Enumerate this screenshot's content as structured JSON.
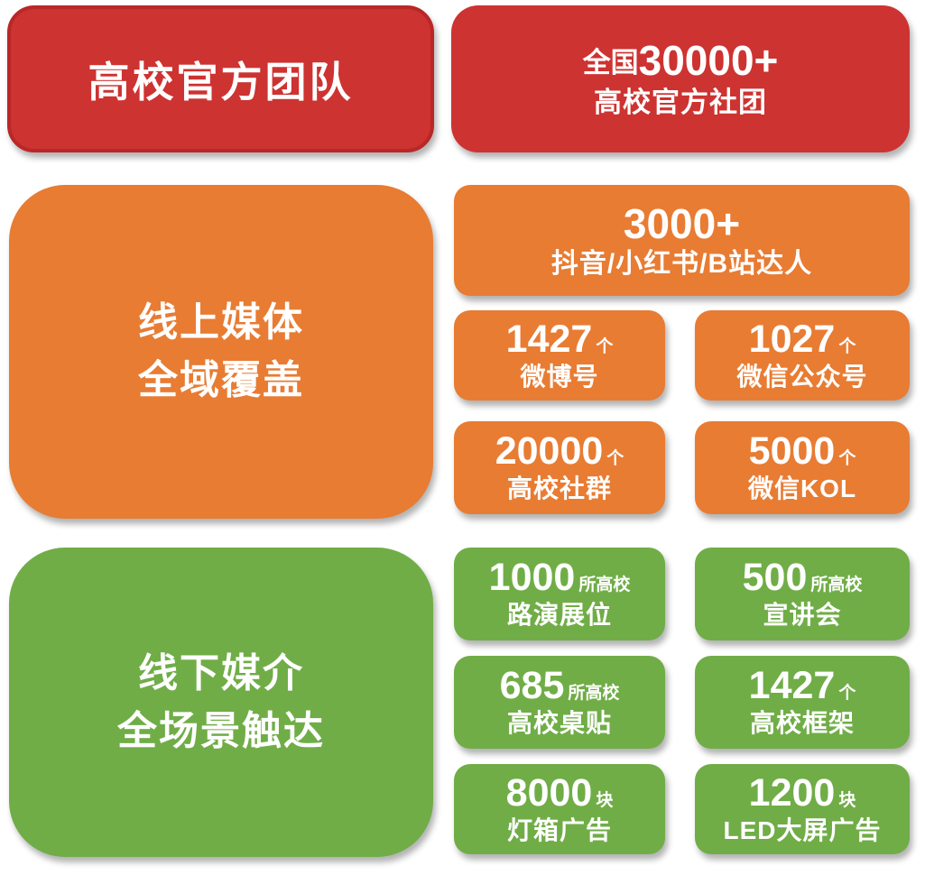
{
  "colors": {
    "red": "#cd3331",
    "red_border": "#b92727",
    "orange": "#e87c33",
    "green": "#70ad47",
    "text": "#ffffff",
    "background": "#ffffff"
  },
  "official_team": {
    "title": "高校官方团队",
    "stat_prefix": "全国",
    "stat_number": "30000+",
    "stat_label": "高校官方社团"
  },
  "online_media": {
    "title_line1": "线上媒体",
    "title_line2": "全域覆盖",
    "feature": {
      "number": "3000+",
      "label": "抖音/小红书/B站达人"
    },
    "stats": [
      {
        "number": "1427",
        "unit": "个",
        "label": "微博号"
      },
      {
        "number": "1027",
        "unit": "个",
        "label": "微信公众号"
      },
      {
        "number": "20000",
        "unit": "个",
        "label": "高校社群"
      },
      {
        "number": "5000",
        "unit": "个",
        "label": "微信KOL"
      }
    ]
  },
  "offline_media": {
    "title_line1": "线下媒介",
    "title_line2": "全场景触达",
    "stats": [
      {
        "number": "1000",
        "unit": "所高校",
        "label": "路演展位"
      },
      {
        "number": "500",
        "unit": "所高校",
        "label": "宣讲会"
      },
      {
        "number": "685",
        "unit": "所高校",
        "label": "高校桌贴"
      },
      {
        "number": "1427",
        "unit": "个",
        "label": "高校框架"
      },
      {
        "number": "8000",
        "unit": "块",
        "label": "灯箱广告"
      },
      {
        "number": "1200",
        "unit": "块",
        "label": "LED大屏广告"
      }
    ]
  }
}
